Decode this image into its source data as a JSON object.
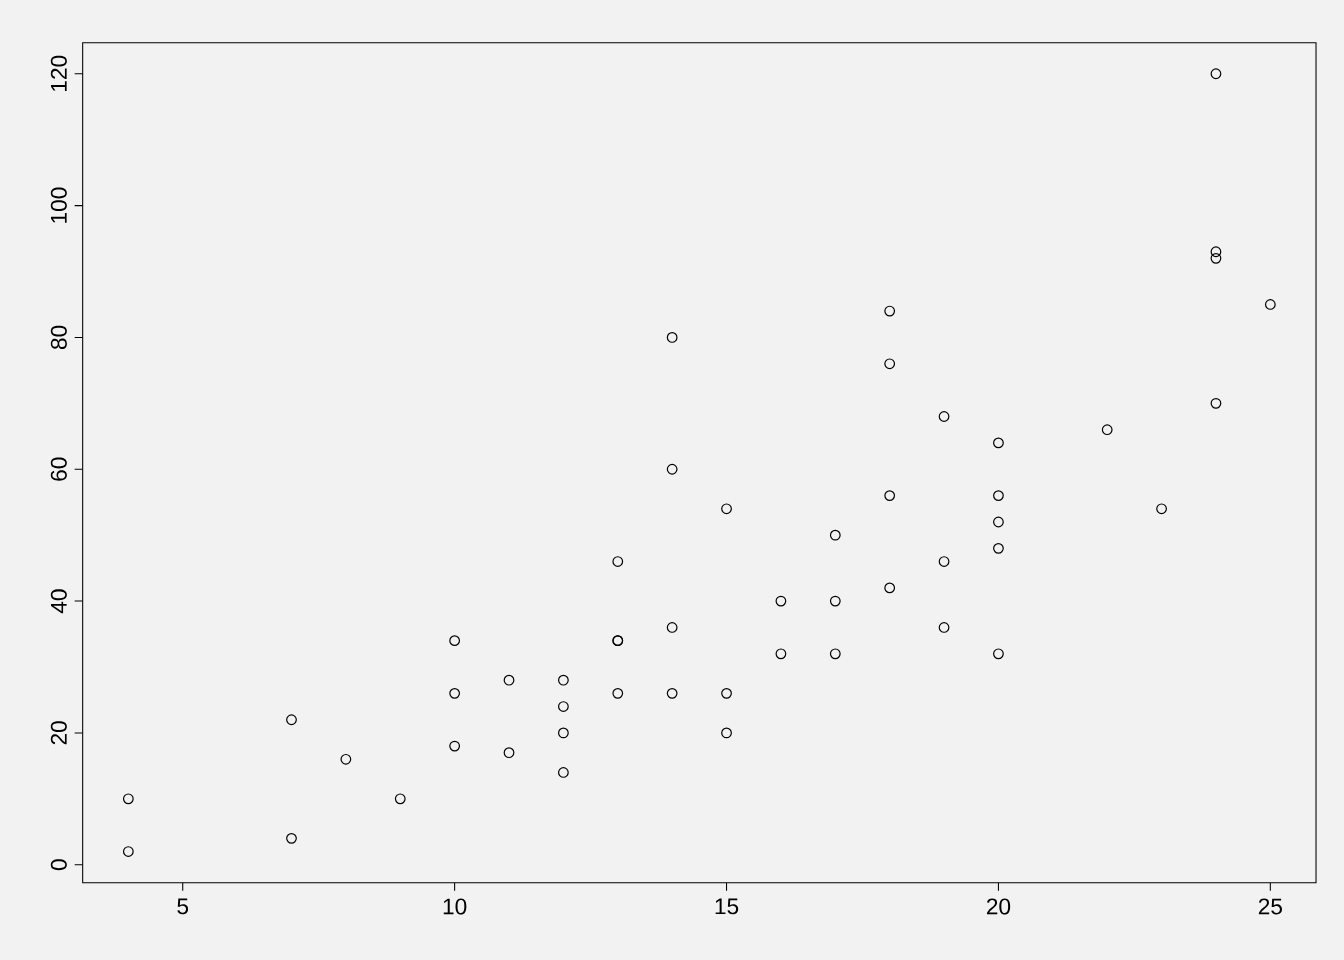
{
  "chart_data": {
    "type": "scatter",
    "x": [
      4,
      4,
      7,
      7,
      8,
      9,
      10,
      10,
      10,
      11,
      11,
      12,
      12,
      12,
      12,
      13,
      13,
      13,
      13,
      14,
      14,
      14,
      14,
      15,
      15,
      15,
      16,
      16,
      17,
      17,
      17,
      18,
      18,
      18,
      18,
      19,
      19,
      19,
      20,
      20,
      20,
      20,
      20,
      22,
      23,
      24,
      24,
      24,
      24,
      25
    ],
    "values": [
      2,
      10,
      4,
      22,
      16,
      10,
      18,
      26,
      34,
      17,
      28,
      14,
      20,
      24,
      28,
      26,
      34,
      34,
      46,
      26,
      36,
      60,
      80,
      20,
      26,
      54,
      32,
      40,
      32,
      40,
      50,
      42,
      56,
      76,
      84,
      36,
      46,
      68,
      32,
      48,
      52,
      56,
      64,
      66,
      54,
      70,
      92,
      93,
      120,
      85
    ],
    "color": "#000000",
    "marker": "circle",
    "xlim": [
      3.16,
      25.84
    ],
    "ylim": [
      -2.72,
      124.72
    ],
    "xticks": [
      5,
      10,
      15,
      20,
      25
    ],
    "yticks": [
      0,
      20,
      40,
      60,
      80,
      100,
      120
    ]
  }
}
